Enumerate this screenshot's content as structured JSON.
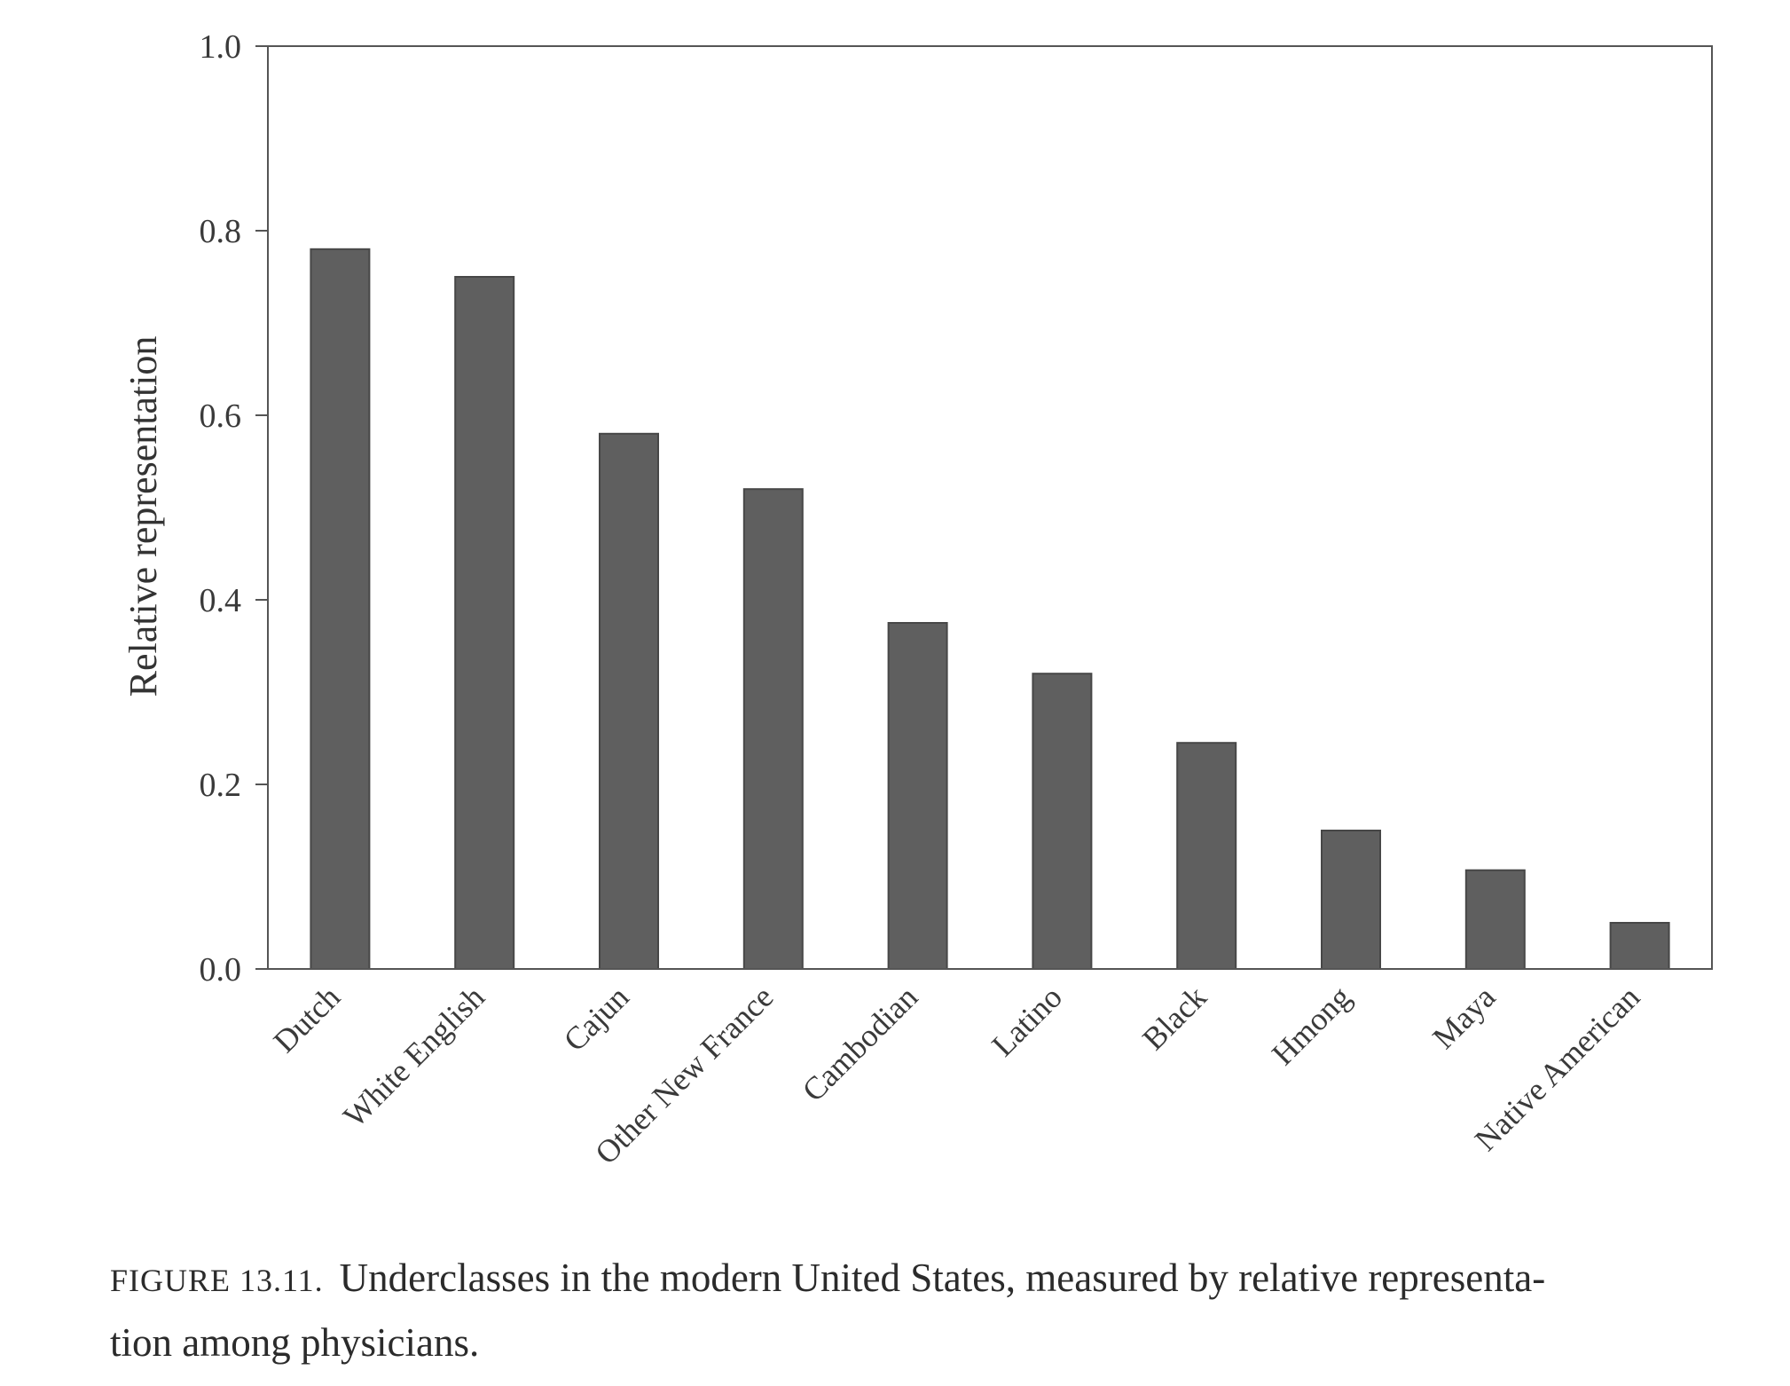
{
  "chart_data": {
    "type": "bar",
    "categories": [
      "Dutch",
      "White English",
      "Cajun",
      "Other New France",
      "Cambodian",
      "Latino",
      "Black",
      "Hmong",
      "Maya",
      "Native American"
    ],
    "values": [
      0.78,
      0.75,
      0.58,
      0.52,
      0.375,
      0.32,
      0.245,
      0.15,
      0.107,
      0.05
    ],
    "ylabel": "Relative representation",
    "ylim": [
      0.0,
      1.0
    ],
    "yticks": [
      "0.0",
      "0.2",
      "0.4",
      "0.6",
      "0.8",
      "1.0"
    ],
    "grid": false,
    "bar_color": "#5f5f5f",
    "axis_color": "#555555"
  },
  "caption": {
    "label": "FIGURE 13.11.",
    "line1": "Underclasses in the modern United States, measured by relative representa-",
    "line2": "tion among physicians."
  }
}
